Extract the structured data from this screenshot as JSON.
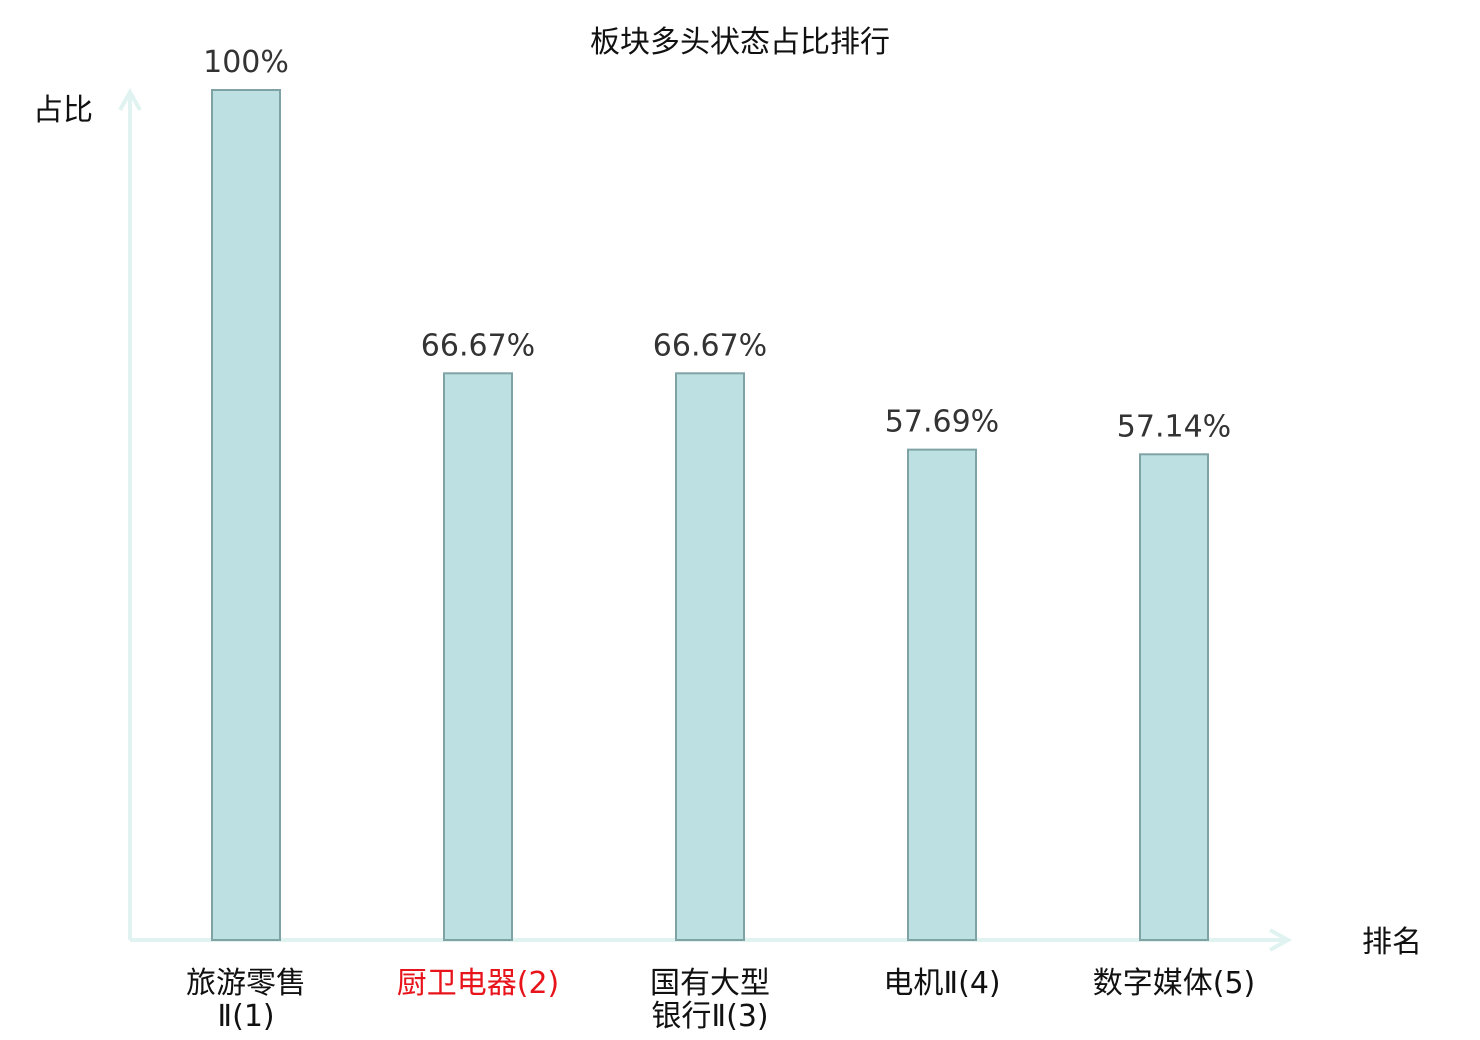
{
  "chart_data": {
    "type": "bar",
    "title": "板块多头状态占比排行",
    "ylabel": "占比",
    "xlabel": "排名",
    "ylim": [
      0,
      100
    ],
    "grid": false,
    "categories": [
      [
        "旅游零售",
        "Ⅱ(1)"
      ],
      [
        "厨卫电器(2)"
      ],
      [
        "国有大型",
        "银行Ⅱ(3)"
      ],
      [
        "电机Ⅱ(4)"
      ],
      [
        "数字媒体(5)"
      ]
    ],
    "values": [
      100,
      66.67,
      66.67,
      57.69,
      57.14
    ],
    "value_labels": [
      "100%",
      "66.67%",
      "66.67%",
      "57.69%",
      "57.14%"
    ],
    "highlight_index": 1,
    "colors": {
      "bar_fill": "#bde0e2",
      "bar_stroke": "#7fa3a5",
      "axis": "#e0f3f1",
      "label": "#333333",
      "highlight": "#e8141b"
    }
  }
}
